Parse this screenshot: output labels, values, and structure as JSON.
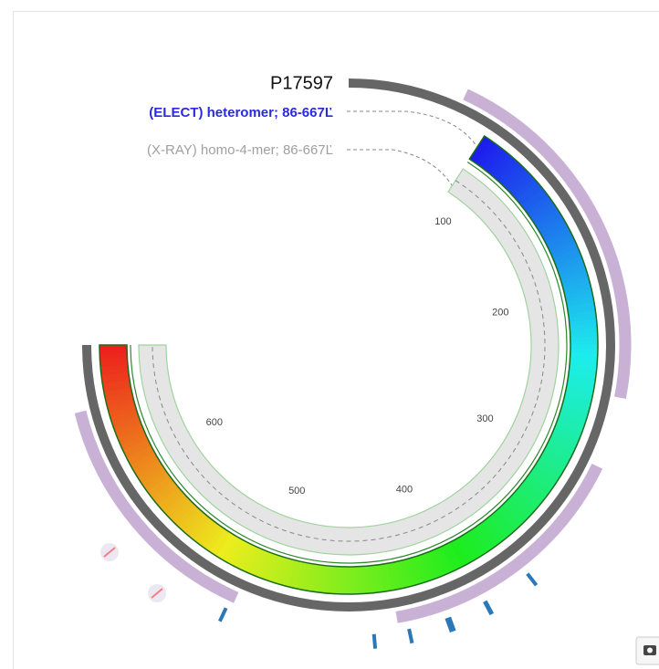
{
  "header": {
    "id": "P17597"
  },
  "tracks": [
    {
      "label": "(ELECT) heteromer; 86-667Ľ"
    },
    {
      "label": "(X-RAY) homo-4-mer; 86-667Ľ"
    }
  ],
  "scale": {
    "ticks": [
      100,
      200,
      300,
      400,
      500,
      600
    ]
  }
}
